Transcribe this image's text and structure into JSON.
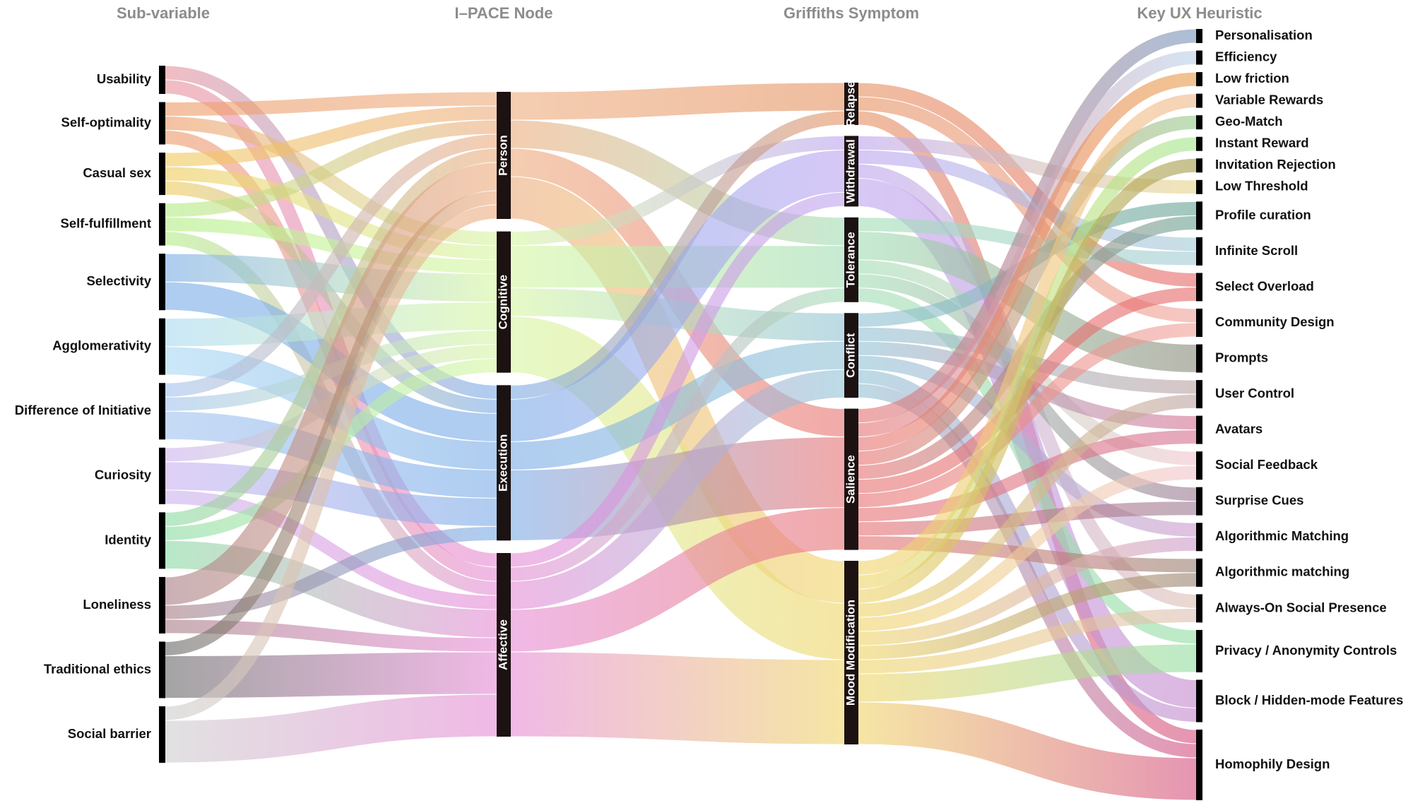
{
  "chart_data": {
    "type": "sankey",
    "columns": [
      {
        "title": "Sub-variable",
        "nodes": [
          {
            "name": "Usability",
            "color": "#e8949e"
          },
          {
            "name": "Self-optimality",
            "color": "#ee9c6a"
          },
          {
            "name": "Casual sex",
            "color": "#f0cc60"
          },
          {
            "name": "Self-fulfillment",
            "color": "#b4ee88"
          },
          {
            "name": "Selectivity",
            "color": "#7eaee8"
          },
          {
            "name": "Agglomerativity",
            "color": "#acdaf4"
          },
          {
            "name": "Difference of Initiative",
            "color": "#a4c4f0"
          },
          {
            "name": "Curiosity",
            "color": "#ccb4f0"
          },
          {
            "name": "Identity",
            "color": "#8cdca4"
          },
          {
            "name": "Loneliness",
            "color": "#aa8088"
          },
          {
            "name": "Traditional ethics",
            "color": "#6c6c6c"
          },
          {
            "name": "Social barrier",
            "color": "#cfcfcf"
          }
        ]
      },
      {
        "title": "I–PACE Node",
        "nodes": [
          {
            "name": "Person",
            "color": "#eeae80"
          },
          {
            "name": "Cognitive",
            "color": "#d6f6a4"
          },
          {
            "name": "Execution",
            "color": "#7eaee8"
          },
          {
            "name": "Affective",
            "color": "#e68ed6"
          }
        ]
      },
      {
        "title": "Griffiths Symptom",
        "nodes": [
          {
            "name": "Relapse",
            "color": "#e69464"
          },
          {
            "name": "Withdrawal",
            "color": "#bea6f0"
          },
          {
            "name": "Tolerance",
            "color": "#a4deb6"
          },
          {
            "name": "Conflict",
            "color": "#94c4d6"
          },
          {
            "name": "Salience",
            "color": "#e87676"
          },
          {
            "name": "Mood Modification",
            "color": "#f0d66c"
          }
        ]
      },
      {
        "title": "Key UX Heuristic",
        "nodes": [
          {
            "name": "Personalisation",
            "color": "#7898bc"
          },
          {
            "name": "Efficiency",
            "color": "#bcd2ec"
          },
          {
            "name": "Low friction",
            "color": "#e89e4c"
          },
          {
            "name": "Variable Rewards",
            "color": "#f0b88c"
          },
          {
            "name": "Geo-Match",
            "color": "#98cc8c"
          },
          {
            "name": "Instant Reward",
            "color": "#a4e68c"
          },
          {
            "name": "Invitation Rejection",
            "color": "#a49c4c"
          },
          {
            "name": "Low Threshold",
            "color": "#e8d68c"
          },
          {
            "name": "Profile curation",
            "color": "#6ca494"
          },
          {
            "name": "Infinite Scroll",
            "color": "#a4ccd6"
          },
          {
            "name": "Select Overload",
            "color": "#e66c6c"
          },
          {
            "name": "Community Design",
            "color": "#f0a49c"
          },
          {
            "name": "Prompts",
            "color": "#8c8c7c"
          },
          {
            "name": "User Control",
            "color": "#bea4a4"
          },
          {
            "name": "Avatars",
            "color": "#d67494"
          },
          {
            "name": "Social Feedback",
            "color": "#f0c6ce"
          },
          {
            "name": "Surprise Cues",
            "color": "#9c7c94"
          },
          {
            "name": "Algorithmic Matching",
            "color": "#ce9cce"
          },
          {
            "name": "Algorithmic matching",
            "color": "#9c8474"
          },
          {
            "name": "Always-On Social Presence",
            "color": "#dec0b6"
          },
          {
            "name": "Privacy / Anonymity Controls",
            "color": "#94dea4"
          },
          {
            "name": "Block / Hidden-mode Features",
            "color": "#c68cce"
          },
          {
            "name": "Homophily Design",
            "color": "#d65484"
          }
        ]
      }
    ],
    "links": [
      {
        "from": "Usability",
        "to": "Execution",
        "value": 1
      },
      {
        "from": "Usability",
        "to": "Affective",
        "value": 1
      },
      {
        "from": "Self-optimality",
        "to": "Person",
        "value": 1
      },
      {
        "from": "Self-optimality",
        "to": "Cognitive",
        "value": 1
      },
      {
        "from": "Self-optimality",
        "to": "Affective",
        "value": 1
      },
      {
        "from": "Casual sex",
        "to": "Person",
        "value": 1
      },
      {
        "from": "Casual sex",
        "to": "Cognitive",
        "value": 1
      },
      {
        "from": "Casual sex",
        "to": "Execution",
        "value": 1
      },
      {
        "from": "Self-fulfillment",
        "to": "Person",
        "value": 1
      },
      {
        "from": "Self-fulfillment",
        "to": "Cognitive",
        "value": 1
      },
      {
        "from": "Self-fulfillment",
        "to": "Affective",
        "value": 1
      },
      {
        "from": "Selectivity",
        "to": "Cognitive",
        "value": 2
      },
      {
        "from": "Selectivity",
        "to": "Execution",
        "value": 2
      },
      {
        "from": "Agglomerativity",
        "to": "Cognitive",
        "value": 2
      },
      {
        "from": "Agglomerativity",
        "to": "Execution",
        "value": 2
      },
      {
        "from": "Difference of Initiative",
        "to": "Person",
        "value": 1
      },
      {
        "from": "Difference of Initiative",
        "to": "Cognitive",
        "value": 1
      },
      {
        "from": "Difference of Initiative",
        "to": "Execution",
        "value": 2
      },
      {
        "from": "Curiosity",
        "to": "Cognitive",
        "value": 1
      },
      {
        "from": "Curiosity",
        "to": "Execution",
        "value": 2
      },
      {
        "from": "Curiosity",
        "to": "Affective",
        "value": 1
      },
      {
        "from": "Identity",
        "to": "Person",
        "value": 1
      },
      {
        "from": "Identity",
        "to": "Cognitive",
        "value": 1
      },
      {
        "from": "Identity",
        "to": "Affective",
        "value": 2
      },
      {
        "from": "Loneliness",
        "to": "Person",
        "value": 2
      },
      {
        "from": "Loneliness",
        "to": "Execution",
        "value": 1
      },
      {
        "from": "Loneliness",
        "to": "Affective",
        "value": 1
      },
      {
        "from": "Traditional ethics",
        "to": "Person",
        "value": 1
      },
      {
        "from": "Traditional ethics",
        "to": "Affective",
        "value": 3
      },
      {
        "from": "Social barrier",
        "to": "Person",
        "value": 1
      },
      {
        "from": "Social barrier",
        "to": "Affective",
        "value": 3
      },
      {
        "from": "Person",
        "to": "Relapse",
        "value": 2
      },
      {
        "from": "Person",
        "to": "Tolerance",
        "value": 2
      },
      {
        "from": "Person",
        "to": "Salience",
        "value": 2
      },
      {
        "from": "Person",
        "to": "Mood Modification",
        "value": 3
      },
      {
        "from": "Cognitive",
        "to": "Withdrawal",
        "value": 1
      },
      {
        "from": "Cognitive",
        "to": "Tolerance",
        "value": 3
      },
      {
        "from": "Cognitive",
        "to": "Conflict",
        "value": 2
      },
      {
        "from": "Cognitive",
        "to": "Mood Modification",
        "value": 4
      },
      {
        "from": "Execution",
        "to": "Relapse",
        "value": 1
      },
      {
        "from": "Execution",
        "to": "Withdrawal",
        "value": 3
      },
      {
        "from": "Execution",
        "to": "Conflict",
        "value": 2
      },
      {
        "from": "Execution",
        "to": "Salience",
        "value": 5
      },
      {
        "from": "Affective",
        "to": "Withdrawal",
        "value": 1
      },
      {
        "from": "Affective",
        "to": "Tolerance",
        "value": 1
      },
      {
        "from": "Affective",
        "to": "Conflict",
        "value": 2
      },
      {
        "from": "Affective",
        "to": "Salience",
        "value": 3
      },
      {
        "from": "Affective",
        "to": "Mood Modification",
        "value": 6
      },
      {
        "from": "Relapse",
        "to": "Select Overload",
        "value": 1
      },
      {
        "from": "Relapse",
        "to": "Community Design",
        "value": 1
      },
      {
        "from": "Relapse",
        "to": "Homophily Design",
        "value": 1
      },
      {
        "from": "Withdrawal",
        "to": "Low Threshold",
        "value": 1
      },
      {
        "from": "Withdrawal",
        "to": "Infinite Scroll",
        "value": 1
      },
      {
        "from": "Withdrawal",
        "to": "Always-On Social Presence",
        "value": 1
      },
      {
        "from": "Withdrawal",
        "to": "Block / Hidden-mode Features",
        "value": 2
      },
      {
        "from": "Tolerance",
        "to": "Infinite Scroll",
        "value": 1
      },
      {
        "from": "Tolerance",
        "to": "Prompts",
        "value": 2
      },
      {
        "from": "Tolerance",
        "to": "Social Feedback",
        "value": 1
      },
      {
        "from": "Tolerance",
        "to": "Surprise Cues",
        "value": 1
      },
      {
        "from": "Tolerance",
        "to": "Privacy / Anonymity Controls",
        "value": 1
      },
      {
        "from": "Conflict",
        "to": "Profile curation",
        "value": 1
      },
      {
        "from": "Conflict",
        "to": "User Control",
        "value": 1
      },
      {
        "from": "Conflict",
        "to": "Avatars",
        "value": 1
      },
      {
        "from": "Conflict",
        "to": "Algorithmic Matching",
        "value": 1
      },
      {
        "from": "Conflict",
        "to": "Block / Hidden-mode Features",
        "value": 1
      },
      {
        "from": "Conflict",
        "to": "Homophily Design",
        "value": 1
      },
      {
        "from": "Salience",
        "to": "Personalisation",
        "value": 1
      },
      {
        "from": "Salience",
        "to": "Efficiency",
        "value": 1
      },
      {
        "from": "Salience",
        "to": "Low friction",
        "value": 1
      },
      {
        "from": "Salience",
        "to": "Geo-Match",
        "value": 1
      },
      {
        "from": "Salience",
        "to": "Profile curation",
        "value": 1
      },
      {
        "from": "Salience",
        "to": "Select Overload",
        "value": 1
      },
      {
        "from": "Salience",
        "to": "Community Design",
        "value": 1
      },
      {
        "from": "Salience",
        "to": "Avatars",
        "value": 1
      },
      {
        "from": "Salience",
        "to": "Surprise Cues",
        "value": 1
      },
      {
        "from": "Salience",
        "to": "Algorithmic matching",
        "value": 1
      },
      {
        "from": "Mood Modification",
        "to": "Variable Rewards",
        "value": 1
      },
      {
        "from": "Mood Modification",
        "to": "Instant Reward",
        "value": 1
      },
      {
        "from": "Mood Modification",
        "to": "Invitation Rejection",
        "value": 1
      },
      {
        "from": "Mood Modification",
        "to": "User Control",
        "value": 1
      },
      {
        "from": "Mood Modification",
        "to": "Social Feedback",
        "value": 1
      },
      {
        "from": "Mood Modification",
        "to": "Algorithmic Matching",
        "value": 1
      },
      {
        "from": "Mood Modification",
        "to": "Algorithmic matching",
        "value": 1
      },
      {
        "from": "Mood Modification",
        "to": "Always-On Social Presence",
        "value": 1
      },
      {
        "from": "Mood Modification",
        "to": "Privacy / Anonymity Controls",
        "value": 2
      },
      {
        "from": "Mood Modification",
        "to": "Homophily Design",
        "value": 3
      }
    ]
  }
}
